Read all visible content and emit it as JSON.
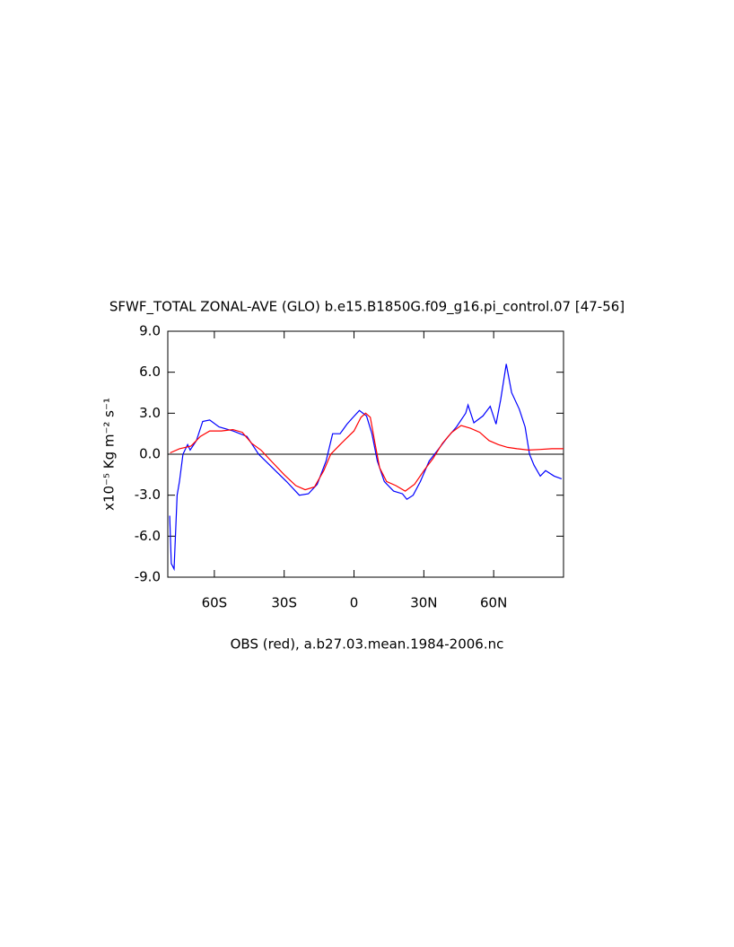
{
  "chart_data": {
    "type": "line",
    "title": "SFWF_TOTAL ZONAL-AVE (GLO) b.e15.B1850G.f09_g16.pi_control.07 [47-56]",
    "xlabel": "OBS (red), a.b27.03.mean.1984-2006.nc",
    "ylabel": "x10⁻⁵ Kg m⁻² s⁻¹",
    "xlim": [
      -80,
      90
    ],
    "ylim": [
      -9,
      9
    ],
    "xticks": [
      {
        "value": -60,
        "label": "60S"
      },
      {
        "value": -30,
        "label": "30S"
      },
      0,
      {
        "value": 30,
        "label": "30N"
      },
      {
        "value": 60,
        "label": "60N"
      }
    ],
    "yticks": [
      {
        "value": 9,
        "label": "9.0"
      },
      {
        "value": 6,
        "label": "6.0"
      },
      {
        "value": 3,
        "label": "3.0"
      },
      {
        "value": 0,
        "label": "0.0"
      },
      {
        "value": -3,
        "label": "-3.0"
      },
      {
        "value": -6,
        "label": "-6.0"
      },
      {
        "value": -9,
        "label": "-9.0"
      }
    ],
    "hline": 0,
    "series": [
      {
        "color": "#0000ff",
        "x": [
          -79.2,
          -78.5,
          -77.3,
          -76,
          -75,
          -73.5,
          -71.5,
          -70.4,
          -67.7,
          -65,
          -62,
          -58,
          -52,
          -46,
          -41,
          -35,
          -29,
          -23.5,
          -19.6,
          -15.8,
          -12,
          -9.2,
          -6,
          -3,
          -0.4,
          2.3,
          5.4,
          7.7,
          10,
          13,
          17,
          20.8,
          22.7,
          25.4,
          28.5,
          32.3,
          36,
          40,
          44,
          48,
          49,
          51.5,
          55.4,
          58.5,
          61,
          63,
          65.4,
          67.7,
          71,
          73.5,
          75.4,
          77.3,
          80,
          82.3,
          86,
          89.2
        ],
        "values": [
          -4.5,
          -8,
          -8.4,
          -3,
          -2,
          0,
          0.7,
          0.3,
          1,
          2.4,
          2.5,
          2.0,
          1.7,
          1.3,
          0,
          -1.0,
          -2.0,
          -3.0,
          -2.9,
          -2.2,
          -0.5,
          1.5,
          1.5,
          2.2,
          2.7,
          3.2,
          2.8,
          1.5,
          -0.5,
          -2.0,
          -2.7,
          -2.9,
          -3.3,
          -3.0,
          -2.0,
          -0.5,
          0.3,
          1.2,
          2.0,
          3.0,
          3.6,
          2.3,
          2.8,
          3.5,
          2.2,
          4,
          6.6,
          4.5,
          3.3,
          2.0,
          0,
          -0.8,
          -1.6,
          -1.2,
          -1.6,
          -1.8
        ]
      },
      {
        "color": "#ff0000",
        "x": [
          -79,
          -75,
          -70,
          -66,
          -62,
          -57,
          -52,
          -48,
          -44,
          -40,
          -35,
          -30,
          -25,
          -21,
          -17,
          -13,
          -10,
          -6,
          -3,
          0,
          3,
          5,
          7,
          9,
          11,
          14,
          18,
          22,
          26,
          30,
          34,
          38,
          42,
          46,
          50,
          54,
          58,
          62,
          66,
          70,
          75,
          80,
          85,
          90
        ],
        "values": [
          0.1,
          0.4,
          0.6,
          1.3,
          1.7,
          1.7,
          1.8,
          1.6,
          0.8,
          0.3,
          -0.6,
          -1.5,
          -2.3,
          -2.6,
          -2.4,
          -1.2,
          0,
          0.7,
          1.2,
          1.7,
          2.7,
          3.0,
          2.7,
          0.8,
          -1.0,
          -2.0,
          -2.3,
          -2.7,
          -2.2,
          -1.2,
          -0.3,
          0.8,
          1.6,
          2.1,
          1.9,
          1.6,
          1.0,
          0.7,
          0.5,
          0.4,
          0.3,
          0.35,
          0.4,
          0.4
        ]
      }
    ]
  }
}
